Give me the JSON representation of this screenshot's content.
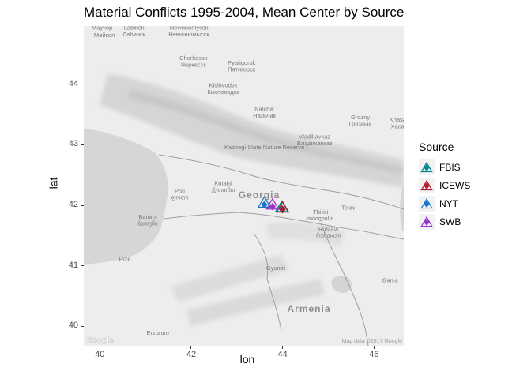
{
  "chart_data": {
    "type": "scatter",
    "title": "Material Conflicts 1995-2004, Mean Center by Source",
    "xlabel": "lon",
    "ylabel": "lat",
    "xlim": [
      39.65,
      46.65
    ],
    "ylim": [
      39.68,
      44.96
    ],
    "x_ticks": [
      40,
      42,
      44,
      46
    ],
    "y_ticks": [
      40,
      41,
      42,
      43,
      44
    ],
    "legend_title": "Source",
    "legend_position": "right",
    "series": [
      {
        "name": "FBIS",
        "color": "#00868B",
        "lon": 43.98,
        "lat": 41.94
      },
      {
        "name": "ICEWS",
        "color": "#B2182B",
        "lon": 44.0,
        "lat": 41.93
      },
      {
        "name": "NYT",
        "color": "#1874CD",
        "lon": 43.6,
        "lat": 42.01
      },
      {
        "name": "SWB",
        "color": "#9A32CD",
        "lon": 43.78,
        "lat": 41.98
      }
    ]
  },
  "basemap": {
    "country_labels": [
      "Georgia",
      "Armenia"
    ],
    "place_labels": [
      {
        "text": "Маучор",
        "lon": 40.05,
        "lat": 44.9
      },
      {
        "text": "Мейкоп",
        "lon": 40.1,
        "lat": 44.78
      },
      {
        "text": "Labinsk",
        "lon": 40.75,
        "lat": 44.9
      },
      {
        "text": "Лабинск",
        "lon": 40.75,
        "lat": 44.79
      },
      {
        "text": "Nevinnomyssk",
        "lon": 41.95,
        "lat": 44.9
      },
      {
        "text": "Невинномысск",
        "lon": 41.95,
        "lat": 44.79
      },
      {
        "text": "Grozny",
        "lon": 45.7,
        "lat": 43.42
      },
      {
        "text": "Грозный",
        "lon": 45.7,
        "lat": 43.31
      },
      {
        "text": "Cherkessk",
        "lon": 42.05,
        "lat": 44.4
      },
      {
        "text": "Черкесск",
        "lon": 42.05,
        "lat": 44.29
      },
      {
        "text": "Pyatigorsk",
        "lon": 43.1,
        "lat": 44.32
      },
      {
        "text": "Пятигорск",
        "lon": 43.1,
        "lat": 44.21
      },
      {
        "text": "Kislovodsk",
        "lon": 42.7,
        "lat": 43.95
      },
      {
        "text": "Кисловодск",
        "lon": 42.7,
        "lat": 43.84
      },
      {
        "text": "Nalchik",
        "lon": 43.6,
        "lat": 43.56
      },
      {
        "text": "Нальчик",
        "lon": 43.6,
        "lat": 43.45
      },
      {
        "text": "Vladikavkaz",
        "lon": 44.7,
        "lat": 43.1
      },
      {
        "text": "Владикавказ",
        "lon": 44.7,
        "lat": 42.99
      },
      {
        "text": "Khasav",
        "lon": 46.55,
        "lat": 43.38
      },
      {
        "text": "Хасав",
        "lon": 46.55,
        "lat": 43.27
      },
      {
        "text": "Kutaisi",
        "lon": 42.7,
        "lat": 42.33
      },
      {
        "text": "ქუთაისი",
        "lon": 42.7,
        "lat": 42.22
      },
      {
        "text": "Poti",
        "lon": 41.75,
        "lat": 42.2
      },
      {
        "text": "ფოთი",
        "lon": 41.75,
        "lat": 42.1
      },
      {
        "text": "Batumi",
        "lon": 41.05,
        "lat": 41.78
      },
      {
        "text": "ბათუმი",
        "lon": 41.05,
        "lat": 41.67
      },
      {
        "text": "Tbilisi",
        "lon": 44.83,
        "lat": 41.86
      },
      {
        "text": "თბილისი",
        "lon": 44.83,
        "lat": 41.75
      },
      {
        "text": "Rustavi",
        "lon": 45.0,
        "lat": 41.58
      },
      {
        "text": "რუსთავი",
        "lon": 45.0,
        "lat": 41.47
      },
      {
        "text": "Telavi",
        "lon": 45.45,
        "lat": 41.93
      },
      {
        "text": "Ganja",
        "lon": 46.35,
        "lat": 40.73
      },
      {
        "text": "Rize",
        "lon": 40.55,
        "lat": 41.08
      },
      {
        "text": "Erzurum",
        "lon": 41.27,
        "lat": 39.86
      },
      {
        "text": "Gyumri",
        "lon": 43.85,
        "lat": 40.93
      }
    ],
    "tbilisi_label": "Tbilisi",
    "national_park_label": "Kazbegi State Nature Reserve",
    "credit": "Map data ©2017 Google",
    "logo": "Google"
  }
}
